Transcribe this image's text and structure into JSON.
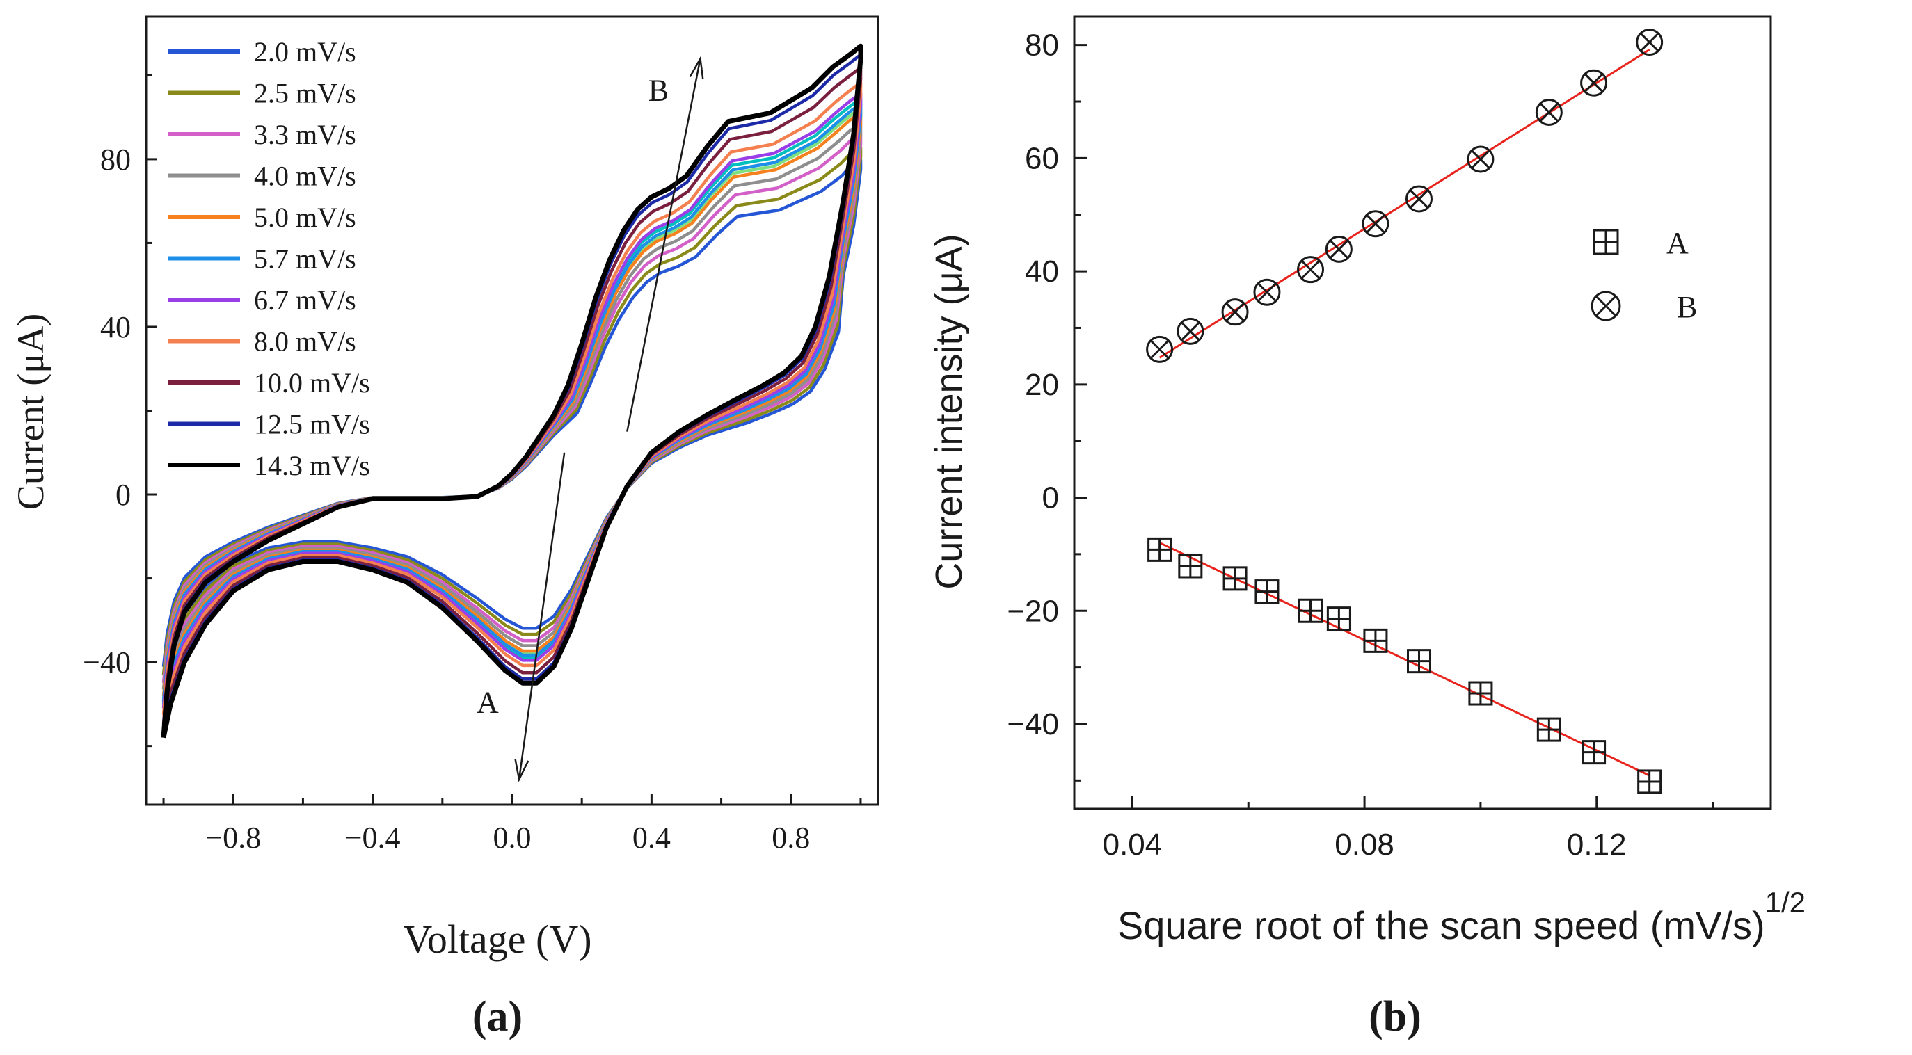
{
  "chart_data": [
    {
      "panel_label": "(a)",
      "type": "line",
      "title": "",
      "xlabel": "Voltage (V)",
      "ylabel": "Current (μA)",
      "xlim": [
        -1.05,
        1.05
      ],
      "ylim": [
        -74,
        114
      ],
      "xticks": [
        -0.8,
        -0.4,
        0.0,
        0.4,
        0.8
      ],
      "xtick_labels": [
        "−0.8",
        "−0.4",
        "0.0",
        "0.4",
        "0.8"
      ],
      "yticks": [
        -40,
        0,
        40,
        80
      ],
      "ytick_labels": [
        "−40",
        "0",
        "40",
        "80"
      ],
      "legend_position": "top-left",
      "series": [
        {
          "name": "2.0 mV/s",
          "color": "#2456d6",
          "scale": 0.47
        },
        {
          "name": "2.5 mV/s",
          "color": "#8a8a1a",
          "scale": 0.53
        },
        {
          "name": "3.3 mV/s",
          "color": "#d35fc8",
          "scale": 0.59
        },
        {
          "name": "4.0 mV/s",
          "color": "#8e8e8e",
          "scale": 0.64
        },
        {
          "name": "5.0 mV/s",
          "color": "#f5811f",
          "scale": 0.69
        },
        {
          "name": "5.7 mV/s",
          "color": "#1e8fe8",
          "scale": 0.73
        },
        {
          "name": "6.7 mV/s",
          "color": "#9a3ee8",
          "scale": 0.78
        },
        {
          "name": "8.0 mV/s",
          "color": "#f47f4f",
          "scale": 0.83
        },
        {
          "name": "10.0 mV/s",
          "color": "#7b1f3f",
          "scale": 0.9
        },
        {
          "name": "12.5 mV/s",
          "color": "#1c2aa8",
          "scale": 0.96
        },
        {
          "name": "14.3 mV/s",
          "color": "#000000",
          "scale": 1.0
        }
      ],
      "extra_series_colors": [
        "#7fe07f",
        "#00bfbf"
      ],
      "annotations": [
        {
          "text": "A",
          "arrow_from": [
            0.15,
            10
          ],
          "arrow_to": [
            0.02,
            -68
          ],
          "label_at": [
            -0.07,
            -52
          ]
        },
        {
          "text": "B",
          "arrow_from": [
            0.33,
            15
          ],
          "arrow_to": [
            0.54,
            104
          ],
          "label_at": [
            0.42,
            94
          ]
        }
      ]
    },
    {
      "panel_label": "(b)",
      "type": "scatter",
      "title": "",
      "xlabel": "Square root of the scan speed (mV/s)",
      "xlabel_superscript": "1/2",
      "ylabel": "Current intensity (μA)",
      "xlim": [
        0.03,
        0.15
      ],
      "ylim": [
        -55,
        85
      ],
      "xticks": [
        0.04,
        0.08,
        0.12
      ],
      "xtick_labels": [
        "0.04",
        "0.08",
        "0.12"
      ],
      "yticks": [
        -40,
        -20,
        0,
        20,
        40,
        60,
        80
      ],
      "ytick_labels": [
        "−40",
        "−20",
        "0",
        "20",
        "40",
        "60",
        "80"
      ],
      "legend_position": "right",
      "fit_line_color": "#e8231c",
      "x": [
        0.0447,
        0.05,
        0.0577,
        0.0632,
        0.0707,
        0.0756,
        0.0819,
        0.0894,
        0.1,
        0.1118,
        0.1195,
        0.1291
      ],
      "series": [
        {
          "name": "A",
          "marker": "boxed-plus",
          "values": [
            -9.2,
            -12.1,
            -14.3,
            -16.6,
            -20.0,
            -21.4,
            -25.3,
            -28.9,
            -34.6,
            -41.0,
            -45.0,
            -50.2
          ]
        },
        {
          "name": "B",
          "marker": "circled-x",
          "values": [
            26.2,
            29.4,
            32.8,
            36.3,
            40.3,
            43.9,
            48.4,
            52.8,
            59.8,
            68.1,
            73.3,
            80.5
          ]
        }
      ]
    }
  ]
}
